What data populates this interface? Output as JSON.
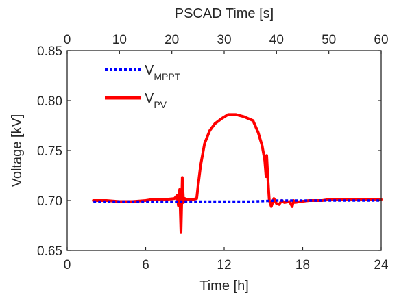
{
  "chart_data": {
    "type": "line",
    "xlabel": "Time [h]",
    "x2label": "PSCAD Time [s]",
    "ylabel": "Voltage [kV]",
    "xlim": [
      0,
      24
    ],
    "x2lim": [
      0,
      60
    ],
    "ylim": [
      0.65,
      0.85
    ],
    "x_ticks": [
      "0",
      "6",
      "12",
      "18",
      "24"
    ],
    "x2_ticks": [
      "0",
      "10",
      "20",
      "30",
      "40",
      "50",
      "60"
    ],
    "y_ticks": [
      "0.65",
      "0.70",
      "0.75",
      "0.80",
      "0.85"
    ],
    "grid": false,
    "legend_position": "top-left",
    "colors": {
      "mppt": "#0000ff",
      "pv": "#ff0000",
      "axis": "#262626"
    },
    "series": [
      {
        "name": "MPPT",
        "legend_main": "V",
        "legend_sub": "MPPT",
        "style": "dotted",
        "x": [
          2,
          4,
          6,
          8,
          10,
          12,
          14,
          16,
          18,
          20,
          22,
          24
        ],
        "y": [
          0.699,
          0.699,
          0.699,
          0.699,
          0.699,
          0.699,
          0.699,
          0.7,
          0.7,
          0.7,
          0.7,
          0.7
        ]
      },
      {
        "name": "PV",
        "legend_main": "V",
        "legend_sub": "PV",
        "style": "solid",
        "x": [
          2,
          3,
          4,
          5,
          6,
          6.5,
          7,
          7.5,
          8.2,
          8.4,
          8.5,
          8.6,
          8.7,
          8.8,
          8.9,
          9.0,
          9.1,
          9.3,
          9.6,
          9.9,
          10.0,
          10.2,
          10.5,
          10.9,
          11.3,
          11.8,
          12.3,
          12.9,
          13.5,
          14.2,
          14.6,
          14.9,
          15.1,
          15.2,
          15.25,
          15.35,
          15.45,
          15.6,
          15.8,
          16.0,
          16.2,
          16.4,
          16.6,
          17.0,
          17.2,
          17.3,
          17.4,
          17.8,
          18.5,
          19.5,
          20.0,
          21,
          22,
          23,
          24
        ],
        "y": [
          0.7,
          0.7,
          0.699,
          0.699,
          0.7,
          0.701,
          0.701,
          0.701,
          0.702,
          0.705,
          0.695,
          0.711,
          0.668,
          0.723,
          0.698,
          0.702,
          0.701,
          0.701,
          0.701,
          0.702,
          0.714,
          0.735,
          0.757,
          0.77,
          0.777,
          0.782,
          0.786,
          0.786,
          0.784,
          0.78,
          0.768,
          0.755,
          0.74,
          0.724,
          0.745,
          0.72,
          0.7,
          0.694,
          0.702,
          0.697,
          0.696,
          0.7,
          0.698,
          0.699,
          0.694,
          0.7,
          0.698,
          0.699,
          0.7,
          0.7,
          0.701,
          0.701,
          0.701,
          0.701,
          0.701
        ]
      }
    ]
  }
}
